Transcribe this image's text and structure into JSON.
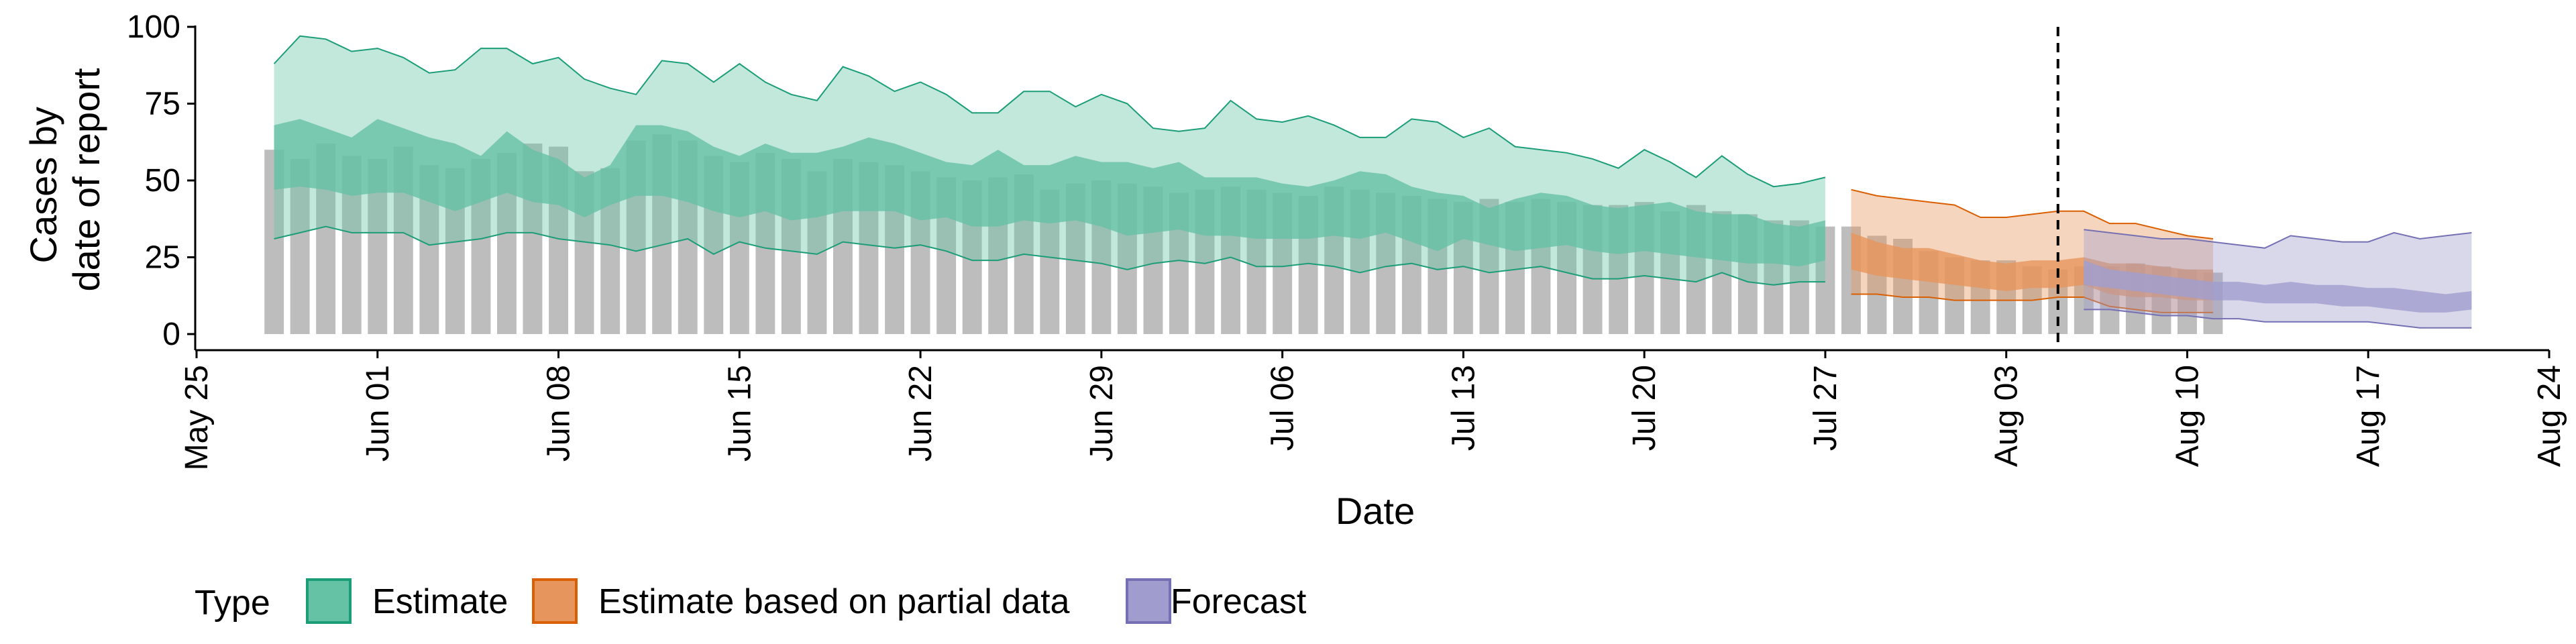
{
  "chart_data": {
    "type": "bar",
    "xlabel": "Date",
    "ylabel_lines": [
      "Cases by",
      "date of report"
    ],
    "ylim": [
      0,
      100
    ],
    "y_ticks": [
      0,
      25,
      50,
      75,
      100
    ],
    "x_range": [
      "2020-05-25",
      "2020-08-24"
    ],
    "x_ticks": [
      {
        "date": "2020-05-25",
        "label": "May 25"
      },
      {
        "date": "2020-06-01",
        "label": "Jun 01"
      },
      {
        "date": "2020-06-08",
        "label": "Jun 08"
      },
      {
        "date": "2020-06-15",
        "label": "Jun 15"
      },
      {
        "date": "2020-06-22",
        "label": "Jun 22"
      },
      {
        "date": "2020-06-29",
        "label": "Jun 29"
      },
      {
        "date": "2020-07-06",
        "label": "Jul 06"
      },
      {
        "date": "2020-07-13",
        "label": "Jul 13"
      },
      {
        "date": "2020-07-20",
        "label": "Jul 20"
      },
      {
        "date": "2020-07-27",
        "label": "Jul 27"
      },
      {
        "date": "2020-08-03",
        "label": "Aug 03"
      },
      {
        "date": "2020-08-10",
        "label": "Aug 10"
      },
      {
        "date": "2020-08-17",
        "label": "Aug 17"
      },
      {
        "date": "2020-08-24",
        "label": "Aug 24"
      }
    ],
    "vline_date": "2020-08-05",
    "grid": false,
    "legend": {
      "title": "Type",
      "position": "bottom",
      "items": [
        {
          "label": "Estimate",
          "fill": "#66c2a5",
          "stroke": "#1b9e77"
        },
        {
          "label": "Estimate based on partial data",
          "fill": "#e6955c",
          "stroke": "#d95f02"
        },
        {
          "label": "Forecast",
          "fill": "#a09dce",
          "stroke": "#7570b3"
        }
      ]
    },
    "bar_color": "#bdbdbd",
    "reported_cases": {
      "start_date": "2020-05-28",
      "values": [
        60,
        57,
        62,
        58,
        57,
        61,
        55,
        54,
        57,
        59,
        62,
        61,
        53,
        54,
        63,
        65,
        63,
        58,
        56,
        59,
        57,
        53,
        57,
        56,
        55,
        53,
        51,
        50,
        51,
        52,
        47,
        49,
        50,
        49,
        48,
        46,
        47,
        48,
        47,
        46,
        45,
        48,
        47,
        46,
        45,
        44,
        43,
        44,
        43,
        44,
        43,
        42,
        42,
        43,
        40,
        42,
        40,
        39,
        37,
        37,
        35,
        35,
        32,
        31,
        27,
        25,
        24,
        24,
        22,
        21,
        22,
        22,
        23,
        22,
        21,
        20
      ]
    },
    "series": [
      {
        "name": "Estimate",
        "start_date": "2020-05-28",
        "outer_upper": [
          88,
          97,
          96,
          92,
          93,
          90,
          85,
          86,
          93,
          93,
          88,
          90,
          83,
          80,
          78,
          89,
          88,
          82,
          88,
          82,
          78,
          76,
          87,
          84,
          79,
          82,
          78,
          72,
          72,
          79,
          79,
          74,
          78,
          75,
          67,
          66,
          67,
          76,
          70,
          69,
          71,
          68,
          64,
          64,
          70,
          69,
          64,
          67,
          61,
          60,
          59,
          57,
          54,
          60,
          56,
          51,
          58,
          52,
          48,
          49,
          51
        ],
        "inner_upper": [
          68,
          70,
          67,
          64,
          70,
          67,
          64,
          62,
          58,
          66,
          60,
          57,
          51,
          55,
          68,
          68,
          66,
          61,
          58,
          62,
          59,
          59,
          61,
          64,
          62,
          59,
          56,
          55,
          60,
          55,
          55,
          58,
          56,
          56,
          54,
          56,
          51,
          51,
          51,
          49,
          48,
          50,
          53,
          52,
          48,
          46,
          45,
          41,
          44,
          46,
          45,
          42,
          41,
          42,
          43,
          40,
          39,
          39,
          36,
          35,
          37
        ],
        "inner_lower": [
          47,
          48,
          47,
          45,
          46,
          46,
          43,
          40,
          43,
          46,
          43,
          42,
          38,
          42,
          45,
          45,
          43,
          40,
          38,
          40,
          37,
          38,
          40,
          40,
          40,
          37,
          38,
          35,
          35,
          37,
          36,
          37,
          35,
          32,
          33,
          34,
          32,
          32,
          31,
          31,
          31,
          32,
          31,
          33,
          30,
          27,
          31,
          29,
          27,
          28,
          29,
          27,
          26,
          27,
          26,
          25,
          24,
          23,
          23,
          22,
          24
        ],
        "outer_lower": [
          31,
          33,
          35,
          33,
          33,
          33,
          29,
          30,
          31,
          33,
          33,
          31,
          30,
          29,
          27,
          29,
          31,
          26,
          30,
          28,
          27,
          26,
          30,
          29,
          28,
          29,
          27,
          24,
          24,
          26,
          25,
          24,
          23,
          21,
          23,
          24,
          23,
          25,
          22,
          22,
          23,
          22,
          20,
          22,
          23,
          21,
          22,
          20,
          21,
          22,
          20,
          18,
          18,
          19,
          18,
          17,
          20,
          17,
          16,
          17,
          17
        ]
      },
      {
        "name": "Estimate based on partial data",
        "start_date": "2020-07-28",
        "outer_upper": [
          47,
          45,
          44,
          43,
          42,
          38,
          38,
          39,
          40,
          40,
          36,
          36,
          34,
          32,
          31
        ],
        "inner_upper": [
          33,
          30,
          28,
          28,
          26,
          24,
          23,
          24,
          24,
          25,
          23,
          23,
          22,
          21,
          21
        ],
        "inner_lower": [
          21,
          19,
          18,
          17,
          16,
          15,
          14,
          15,
          15,
          16,
          13,
          12,
          12,
          11,
          11
        ],
        "outer_lower": [
          13,
          13,
          12,
          12,
          11,
          11,
          11,
          11,
          12,
          12,
          9,
          8,
          7,
          7,
          7
        ]
      },
      {
        "name": "Forecast",
        "start_date": "2020-08-06",
        "outer_upper": [
          34,
          33,
          32,
          31,
          31,
          30,
          29,
          28,
          32,
          31,
          30,
          30,
          33,
          31,
          32,
          33
        ],
        "inner_upper": [
          24,
          21,
          20,
          19,
          18,
          17,
          17,
          16,
          17,
          16,
          16,
          15,
          15,
          14,
          13,
          14
        ],
        "inner_lower": [
          16,
          15,
          14,
          13,
          12,
          11,
          11,
          10,
          10,
          10,
          9,
          9,
          8,
          7,
          7,
          8
        ],
        "outer_lower": [
          8,
          8,
          7,
          6,
          6,
          5,
          5,
          4,
          4,
          4,
          4,
          4,
          3,
          2,
          2,
          2
        ]
      }
    ]
  }
}
